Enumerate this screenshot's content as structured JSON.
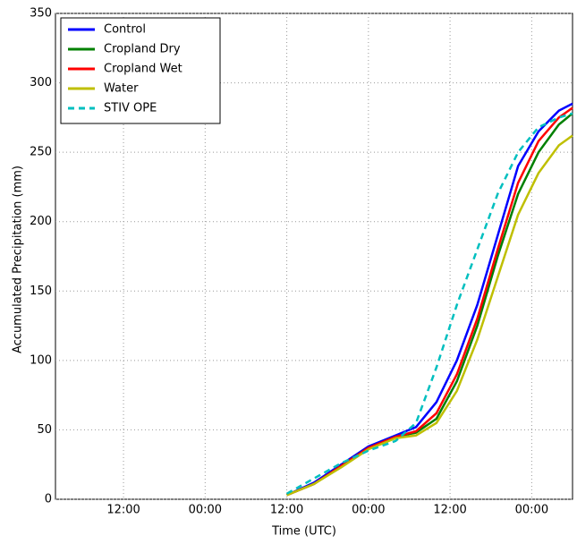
{
  "chart_data": {
    "type": "line",
    "xlabel": "Time (UTC)",
    "ylabel": "Accumulated Precipitation (mm)",
    "xlim": [
      0,
      76
    ],
    "xticks": [
      {
        "value": 10,
        "label": "12:00"
      },
      {
        "value": 22,
        "label": "00:00"
      },
      {
        "value": 34,
        "label": "12:00"
      },
      {
        "value": 46,
        "label": "00:00"
      },
      {
        "value": 58,
        "label": "12:00"
      },
      {
        "value": 70,
        "label": "00:00"
      }
    ],
    "ylim": [
      0,
      350
    ],
    "yticks": [
      0,
      50,
      100,
      150,
      200,
      250,
      300,
      350
    ],
    "grid": true,
    "legend": "upper left",
    "x": [
      34,
      38,
      42,
      46,
      50,
      53,
      56,
      59,
      62,
      65,
      68,
      71,
      74,
      76
    ],
    "series": [
      {
        "name": "Control",
        "color": "#0000ff",
        "dash": false,
        "values": [
          3,
          12,
          25,
          38,
          46,
          52,
          70,
          100,
          140,
          190,
          240,
          265,
          280,
          285
        ]
      },
      {
        "name": "Cropland Dry",
        "color": "#008000",
        "dash": false,
        "values": [
          3,
          11,
          24,
          37,
          45,
          48,
          58,
          85,
          125,
          175,
          220,
          250,
          270,
          278
        ]
      },
      {
        "name": "Cropland Wet",
        "color": "#ff0000",
        "dash": false,
        "values": [
          3,
          11,
          24,
          37,
          45,
          49,
          62,
          90,
          130,
          180,
          228,
          258,
          275,
          282
        ]
      },
      {
        "name": "Water",
        "color": "#bfbf00",
        "dash": false,
        "values": [
          3,
          11,
          23,
          36,
          44,
          46,
          55,
          78,
          115,
          160,
          205,
          235,
          255,
          262
        ]
      },
      {
        "name": "STIV OPE",
        "color": "#00bfbf",
        "dash": true,
        "values": [
          4,
          15,
          26,
          35,
          42,
          55,
          95,
          140,
          180,
          220,
          250,
          268,
          275,
          278
        ]
      }
    ]
  }
}
